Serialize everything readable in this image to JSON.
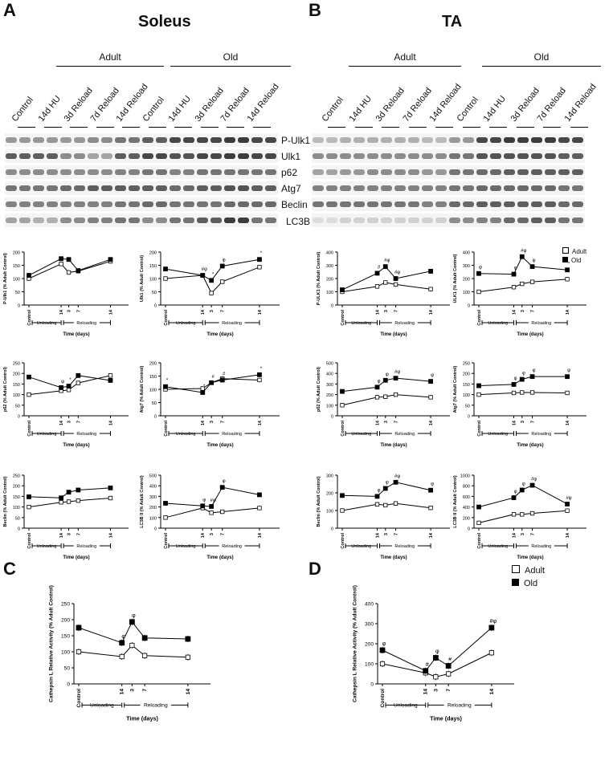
{
  "panels": {
    "A": {
      "letter": "A",
      "title": "Soleus"
    },
    "B": {
      "letter": "B",
      "title": "TA"
    },
    "C": {
      "letter": "C"
    },
    "D": {
      "letter": "D"
    }
  },
  "groups": {
    "adult": "Adult",
    "old": "Old"
  },
  "lanes": [
    "Control",
    "14d HU",
    "3d Reload",
    "7d Reload",
    "14d Reload",
    "Control",
    "14d HU",
    "3d Reload",
    "7d Reload",
    "14d Reload"
  ],
  "lanes_B": [
    "Control",
    "14d HU",
    "3d Reload",
    "7d Reload",
    "14d Reload",
    "Control",
    "14d HU",
    "3d Reload",
    "7d Reload",
    "14d Reload"
  ],
  "proteins": [
    "P-Ulk1",
    "Ulk1",
    "p62",
    "Atg7",
    "Beclin",
    "LC3B"
  ],
  "legend": {
    "adult": "Adult",
    "old": "Old"
  },
  "xaxis": {
    "ticks": [
      "Control",
      "14",
      "3",
      "7",
      "14"
    ],
    "unloading": "Unloading",
    "reloading": "Reloading",
    "title": "Time (days)"
  },
  "colors": {
    "adult": "#ffffff",
    "old": "#000000",
    "stroke": "#000000"
  },
  "chart_data": [
    {
      "id": "soleus-pulk1",
      "type": "line",
      "ylabel": "P-Ulk1 (% Adult Control)",
      "ylim": [
        0,
        200
      ],
      "yticks": [
        0,
        50,
        100,
        150,
        200
      ],
      "x": [
        "Control",
        "14",
        "3",
        "7",
        "14"
      ],
      "series": [
        {
          "name": "Adult",
          "values": [
            100,
            155,
            123,
            128,
            165
          ]
        },
        {
          "name": "Old",
          "values": [
            112,
            175,
            172,
            130,
            172
          ]
        }
      ],
      "annotations": []
    },
    {
      "id": "soleus-ulk1",
      "type": "line",
      "ylabel": "Ulk1 (% Adult Control)",
      "ylim": [
        0,
        200
      ],
      "yticks": [
        0,
        50,
        100,
        150,
        200
      ],
      "x": [
        "Control",
        "14",
        "3",
        "7",
        "14"
      ],
      "series": [
        {
          "name": "Adult",
          "values": [
            100,
            112,
            45,
            88,
            143
          ]
        },
        {
          "name": "Old",
          "values": [
            136,
            112,
            93,
            147,
            172
          ]
        }
      ],
      "annotations": [
        "#φ",
        "*",
        "φ",
        "*"
      ]
    },
    {
      "id": "ta-pulk1",
      "type": "line",
      "ylabel": "P-ULK1 (% Adult Control)",
      "ylim": [
        0,
        400
      ],
      "yticks": [
        0,
        100,
        200,
        300,
        400
      ],
      "x": [
        "Control",
        "14",
        "3",
        "7",
        "14"
      ],
      "series": [
        {
          "name": "Adult",
          "values": [
            100,
            140,
            170,
            155,
            120
          ]
        },
        {
          "name": "Old",
          "values": [
            115,
            240,
            290,
            200,
            255
          ]
        }
      ],
      "annotations": [
        "#",
        "#φ",
        "#φ"
      ]
    },
    {
      "id": "ta-ulk1",
      "type": "line",
      "ylabel": "ULK1 (% Adult Control)",
      "ylim": [
        0,
        400
      ],
      "yticks": [
        0,
        100,
        200,
        300,
        400
      ],
      "x": [
        "Control",
        "14",
        "3",
        "7",
        "14"
      ],
      "series": [
        {
          "name": "Adult",
          "values": [
            100,
            135,
            160,
            175,
            195
          ]
        },
        {
          "name": "Old",
          "values": [
            238,
            233,
            365,
            290,
            265
          ]
        }
      ],
      "annotations": [
        "φ",
        "φ",
        "#φ",
        "φ",
        "*"
      ]
    },
    {
      "id": "soleus-p62",
      "type": "line",
      "ylabel": "p62 (% Adult Control)",
      "ylim": [
        0,
        250
      ],
      "yticks": [
        0,
        50,
        100,
        150,
        200,
        250
      ],
      "x": [
        "Control",
        "14",
        "3",
        "7",
        "14"
      ],
      "series": [
        {
          "name": "Adult",
          "values": [
            100,
            118,
            122,
            155,
            190
          ]
        },
        {
          "name": "Old",
          "values": [
            183,
            133,
            140,
            190,
            167
          ]
        }
      ],
      "annotations": [
        "φ",
        "*"
      ]
    },
    {
      "id": "soleus-atg7",
      "type": "line",
      "ylabel": "Atg7 (% Adult Control)",
      "ylim": [
        0,
        200
      ],
      "yticks": [
        0,
        50,
        100,
        150,
        200
      ],
      "x": [
        "Control",
        "14",
        "3",
        "7",
        "14"
      ],
      "series": [
        {
          "name": "Adult",
          "values": [
            100,
            103,
            125,
            140,
            135
          ]
        },
        {
          "name": "Old",
          "values": [
            110,
            88,
            125,
            135,
            155
          ]
        }
      ],
      "annotations": [
        "*",
        "*",
        "#",
        "#",
        "*"
      ]
    },
    {
      "id": "ta-p62",
      "type": "line",
      "ylabel": "p62 (% Adult Control)",
      "ylim": [
        0,
        500
      ],
      "yticks": [
        0,
        100,
        200,
        300,
        400,
        500
      ],
      "x": [
        "Control",
        "14",
        "3",
        "7",
        "14"
      ],
      "series": [
        {
          "name": "Adult",
          "values": [
            100,
            175,
            180,
            200,
            175
          ]
        },
        {
          "name": "Old",
          "values": [
            230,
            270,
            335,
            355,
            325
          ]
        }
      ],
      "annotations": [
        "φ",
        "φ",
        "#φ",
        "φ"
      ]
    },
    {
      "id": "ta-atg7",
      "type": "line",
      "ylabel": "Atg7 (% Adult Control)",
      "ylim": [
        0,
        250
      ],
      "yticks": [
        0,
        50,
        100,
        150,
        200,
        250
      ],
      "x": [
        "Control",
        "14",
        "3",
        "7",
        "14"
      ],
      "series": [
        {
          "name": "Adult",
          "values": [
            100,
            108,
            110,
            110,
            108
          ]
        },
        {
          "name": "Old",
          "values": [
            142,
            148,
            172,
            185,
            185
          ]
        }
      ],
      "annotations": [
        "φ",
        "φ",
        "φ",
        "φ"
      ]
    },
    {
      "id": "soleus-beclin",
      "type": "line",
      "ylabel": "Beclin (% Adult Control)",
      "ylim": [
        0,
        250
      ],
      "yticks": [
        0,
        50,
        100,
        150,
        200,
        250
      ],
      "x": [
        "Control",
        "14",
        "3",
        "7",
        "14"
      ],
      "series": [
        {
          "name": "Adult",
          "values": [
            100,
            122,
            125,
            130,
            142
          ]
        },
        {
          "name": "Old",
          "values": [
            148,
            143,
            170,
            180,
            190
          ]
        }
      ],
      "annotations": []
    },
    {
      "id": "soleus-lc3b",
      "type": "line",
      "ylabel": "LC3B II (% Adult Control)",
      "ylim": [
        0,
        500
      ],
      "yticks": [
        0,
        100,
        200,
        300,
        400,
        500
      ],
      "x": [
        "Control",
        "14",
        "3",
        "7",
        "14"
      ],
      "series": [
        {
          "name": "Adult",
          "values": [
            100,
            190,
            145,
            155,
            190
          ]
        },
        {
          "name": "Old",
          "values": [
            235,
            210,
            205,
            385,
            315
          ]
        }
      ],
      "annotations": [
        "φ",
        "#φ",
        "φ"
      ]
    },
    {
      "id": "ta-beclin",
      "type": "line",
      "ylabel": "Beclin (% Adult Control)",
      "ylim": [
        0,
        300
      ],
      "yticks": [
        0,
        100,
        200,
        300
      ],
      "x": [
        "Control",
        "14",
        "3",
        "7",
        "14"
      ],
      "series": [
        {
          "name": "Adult",
          "values": [
            100,
            135,
            130,
            140,
            115
          ]
        },
        {
          "name": "Old",
          "values": [
            185,
            180,
            225,
            260,
            215
          ]
        }
      ],
      "annotations": [
        "φ",
        "φ",
        "#φ",
        "φ"
      ]
    },
    {
      "id": "ta-lc3b",
      "type": "line",
      "ylabel": "LC3B II (% Adult Control)",
      "ylim": [
        0,
        1000
      ],
      "yticks": [
        0,
        200,
        400,
        600,
        800,
        1000
      ],
      "x": [
        "Control",
        "14",
        "3",
        "7",
        "14"
      ],
      "series": [
        {
          "name": "Adult",
          "values": [
            100,
            260,
            260,
            280,
            330
          ]
        },
        {
          "name": "Old",
          "values": [
            400,
            575,
            720,
            810,
            455
          ]
        }
      ],
      "annotations": [
        "φ",
        "φ",
        "#φ",
        "#φ"
      ]
    },
    {
      "id": "soleus-cathepsin",
      "type": "line",
      "ylabel": "Cathepsin L Relative Activity (% Adult Control)",
      "ylim": [
        0,
        250
      ],
      "yticks": [
        0,
        50,
        100,
        150,
        200,
        250
      ],
      "x": [
        "Control",
        "14",
        "3",
        "7",
        "14"
      ],
      "series": [
        {
          "name": "Adult",
          "values": [
            100,
            85,
            120,
            88,
            83
          ]
        },
        {
          "name": "Old",
          "values": [
            175,
            128,
            193,
            143,
            140
          ]
        }
      ],
      "annotations": [
        "φ",
        "φ"
      ]
    },
    {
      "id": "ta-cathepsin",
      "type": "line",
      "ylabel": "Cathepsin L Relative Activity (% Adult Control)",
      "ylim": [
        0,
        400
      ],
      "yticks": [
        0,
        100,
        200,
        300,
        400
      ],
      "x": [
        "Control",
        "14",
        "3",
        "7",
        "14"
      ],
      "series": [
        {
          "name": "Adult",
          "values": [
            100,
            55,
            35,
            50,
            155
          ]
        },
        {
          "name": "Old",
          "values": [
            168,
            65,
            130,
            90,
            280
          ]
        }
      ],
      "annotations": [
        "φ",
        "#",
        "φ",
        "#",
        "#φ"
      ]
    }
  ]
}
